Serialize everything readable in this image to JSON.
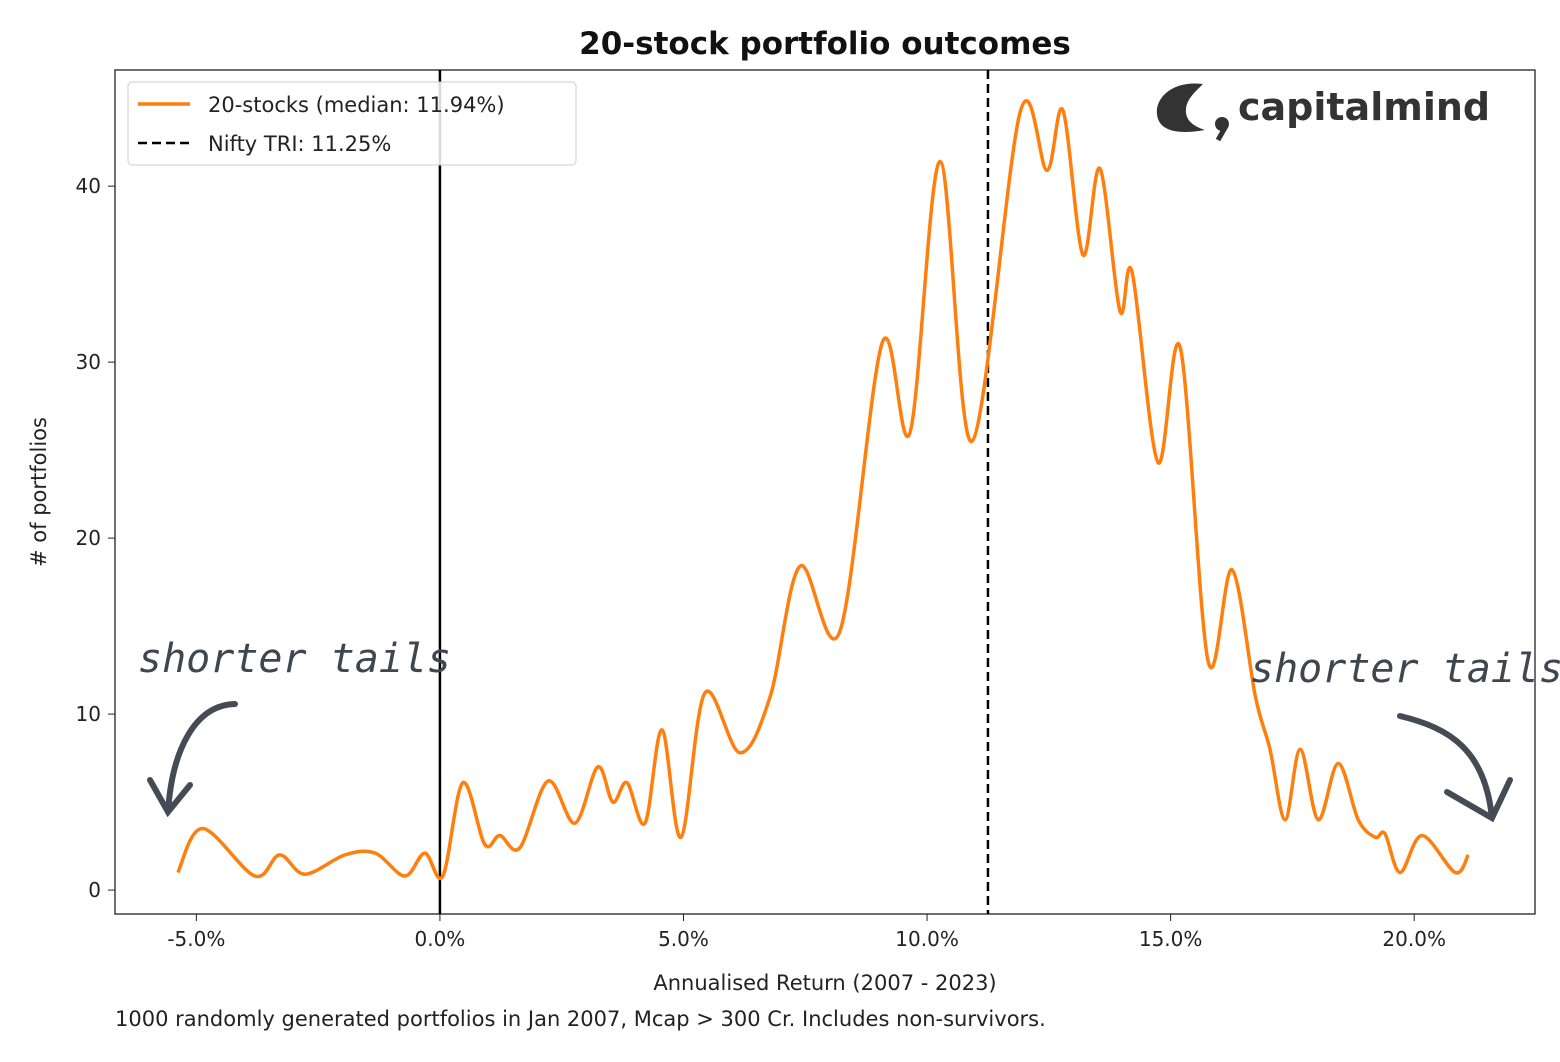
{
  "chart_data": {
    "type": "line",
    "title": "20-stock portfolio outcomes",
    "xlabel": "Annualised Return (2007 - 2023)",
    "ylabel": "# of portfolios",
    "footnote": "1000 randomly generated portfolios in Jan 2007, Mcap > 300 Cr. Includes non-survivors.",
    "xlim": [
      -6.67,
      22.48
    ],
    "ylim": [
      -1.36,
      46.6
    ],
    "x_ticks": [
      -5,
      0,
      5,
      10,
      15,
      20
    ],
    "x_tick_labels": [
      "-5.0%",
      "0.0%",
      "5.0%",
      "10.0%",
      "15.0%",
      "20.0%"
    ],
    "y_ticks": [
      0,
      10,
      20,
      30,
      40
    ],
    "y_tick_labels": [
      "0",
      "10",
      "20",
      "30",
      "40"
    ],
    "grid": false,
    "legend_position": "top-left",
    "series": [
      {
        "name": "20-stocks (median: 11.94%)",
        "color": "#ff7f0e",
        "style": "solid",
        "x": [
          -5.38,
          -4.87,
          -3.8,
          -3.29,
          -2.77,
          -1.95,
          -1.33,
          -0.72,
          -0.31,
          0.06,
          0.47,
          0.92,
          1.23,
          1.64,
          2.22,
          2.77,
          3.24,
          3.55,
          3.84,
          4.21,
          4.56,
          4.95,
          5.44,
          6.16,
          6.78,
          7.39,
          8.21,
          9.08,
          9.65,
          10.27,
          10.92,
          11.91,
          12.46,
          12.79,
          13.2,
          13.55,
          13.96,
          14.21,
          14.74,
          15.2,
          15.77,
          16.26,
          16.74,
          17.04,
          17.35,
          17.66,
          18.03,
          18.44,
          18.85,
          19.2,
          19.4,
          19.71,
          20.16,
          20.84,
          21.11
        ],
        "y": [
          1.0,
          3.5,
          0.8,
          2.0,
          0.9,
          2.0,
          2.1,
          0.8,
          2.1,
          0.8,
          6.1,
          2.6,
          3.1,
          2.4,
          6.2,
          3.8,
          7.0,
          5.0,
          6.1,
          3.8,
          9.1,
          3.0,
          11.2,
          7.8,
          11.0,
          18.4,
          14.7,
          31.1,
          26.0,
          41.4,
          25.5,
          44.2,
          40.9,
          44.3,
          36.1,
          41.0,
          32.9,
          35.1,
          24.3,
          30.8,
          13.0,
          18.2,
          11.0,
          8.0,
          4.0,
          8.0,
          4.0,
          7.2,
          4.0,
          3.0,
          3.2,
          1.0,
          3.1,
          1.0,
          2.0
        ]
      }
    ],
    "vlines": [
      {
        "name": "Nifty TRI: 11.25%",
        "x": 11.25,
        "color": "#000000",
        "style": "dashed"
      },
      {
        "x": 0,
        "color": "#000000",
        "style": "solid"
      }
    ],
    "annotations": [
      "shorter tails",
      "shorter tails"
    ],
    "logo_text": "capitalmind"
  }
}
